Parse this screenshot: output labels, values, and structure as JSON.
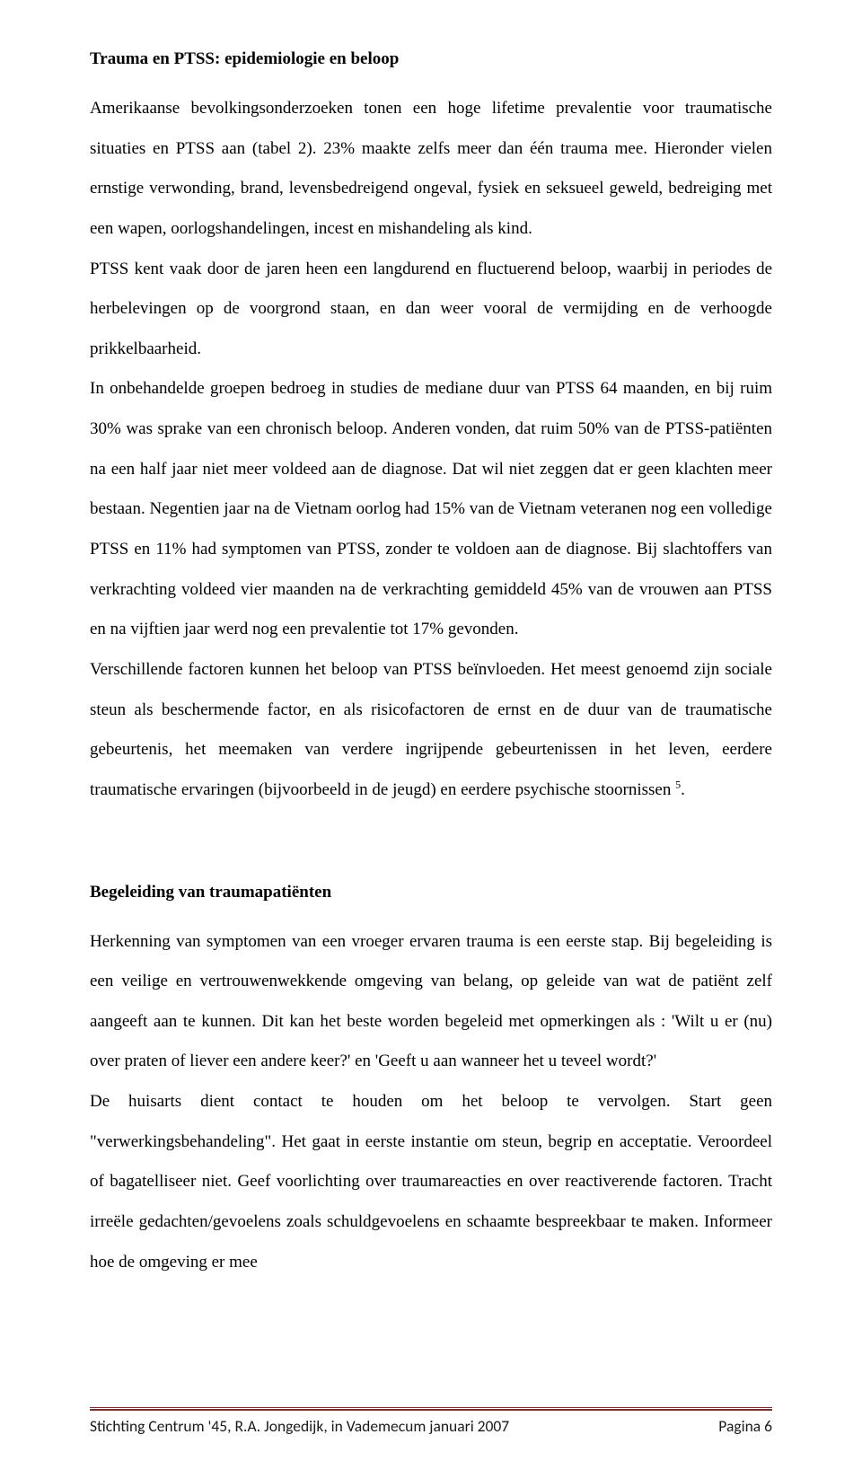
{
  "section1": {
    "heading": "Trauma en PTSS: epidemiologie en beloop",
    "p1": "Amerikaanse bevolkingsonderzoeken tonen een hoge lifetime prevalentie voor traumatische situaties en PTSS aan (tabel 2). 23% maakte zelfs meer dan één trauma mee. Hieronder vielen ernstige verwonding, brand, levensbedreigend ongeval, fysiek en seksueel geweld, bedreiging met een wapen, oorlogshandelingen, incest en mishandeling als kind.",
    "p2": "PTSS kent vaak door de jaren heen een langdurend en fluctuerend beloop, waarbij in periodes de herbelevingen op de voorgrond staan, en dan weer vooral de vermijding en de verhoogde prikkelbaarheid.",
    "p3a": "In onbehandelde groepen bedroeg in studies de mediane duur van PTSS 64 maanden, en bij ruim 30% was sprake van een chronisch beloop. Anderen vonden, dat ruim 50% van de PTSS-patiënten na een half jaar niet meer voldeed aan de diagnose. Dat wil niet zeggen dat er geen klachten meer bestaan. Negentien jaar na de Vietnam oorlog had 15% van de Vietnam veteranen nog een volledige PTSS en 11% had symptomen van PTSS, zonder te voldoen aan de diagnose. Bij slachtoffers van verkrachting voldeed vier maanden na de verkrachting gemiddeld 45% van de vrouwen aan PTSS en na vijftien jaar werd nog een prevalentie tot 17% gevonden.",
    "p4a": "Verschillende factoren kunnen het beloop van PTSS beïnvloeden. Het meest genoemd zijn sociale steun als beschermende factor, en als risicofactoren de ernst en de duur van de traumatische gebeurtenis, het meemaken van verdere ingrijpende gebeurtenissen in het leven, eerdere traumatische ervaringen (bijvoorbeeld in de jeugd) en eerdere psychische stoornissen ",
    "p4sup": "5",
    "p4b": "."
  },
  "section2": {
    "heading": "Begeleiding van traumapatiënten",
    "p1": "Herkenning van symptomen van een vroeger ervaren trauma is een eerste stap. Bij begeleiding is een veilige en vertrouwenwekkende omgeving van belang, op geleide van wat de patiënt zelf aangeeft aan te kunnen. Dit kan het beste worden begeleid met opmerkingen als : 'Wilt u er (nu) over praten of liever een andere keer?' en 'Geeft u aan wanneer het u teveel wordt?'",
    "p2": "De huisarts dient contact te houden om het beloop te vervolgen. Start geen \"verwerkingsbehandeling\". Het gaat in eerste instantie om steun, begrip en acceptatie. Veroordeel of bagatelliseer niet. Geef voorlichting over traumareacties en over reactiverende factoren. Tracht irreële gedachten/gevoelens zoals schuldgevoelens en schaamte bespreekbaar te maken. Informeer hoe de omgeving er mee"
  },
  "footer": {
    "left": "Stichting Centrum '45, R.A. Jongedijk, in Vademecum januari 2007",
    "right": "Pagina 6"
  }
}
